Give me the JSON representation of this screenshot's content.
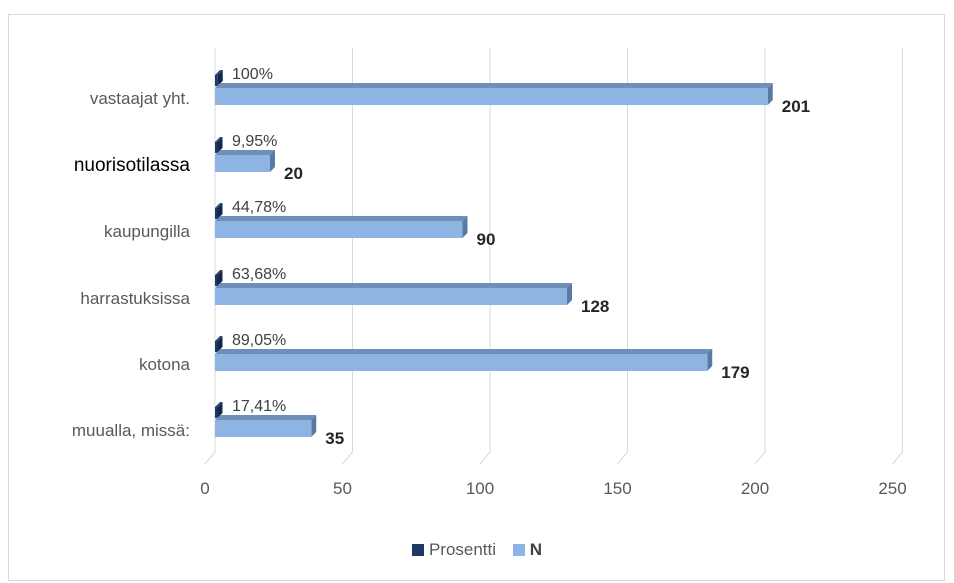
{
  "chart_data": {
    "type": "bar",
    "orientation": "horizontal",
    "categories": [
      "vastaajat yht.",
      "nuorisotilassa",
      "kaupungilla",
      "harrastuksissa",
      "kotona",
      "muualla, missä:"
    ],
    "series": [
      {
        "name": "Prosentti",
        "values": [
          1.0,
          0.0995,
          0.4478,
          0.6368,
          0.8905,
          0.1741
        ],
        "data_labels": [
          "100%",
          "9,95%",
          "44,78%",
          "63,68%",
          "89,05%",
          "17,41%"
        ],
        "color": "#1f3864"
      },
      {
        "name": "N",
        "values": [
          201,
          20,
          90,
          128,
          179,
          35
        ],
        "data_labels": [
          "201",
          "20",
          "90",
          "128",
          "179",
          "35"
        ],
        "color": "#8eb4e3"
      }
    ],
    "x_ticks": [
      "0",
      "50",
      "100",
      "150",
      "200",
      "250"
    ],
    "xlim": [
      0,
      250
    ],
    "grid": true,
    "legend_position": "bottom",
    "style": "3d-clustered-bar"
  }
}
